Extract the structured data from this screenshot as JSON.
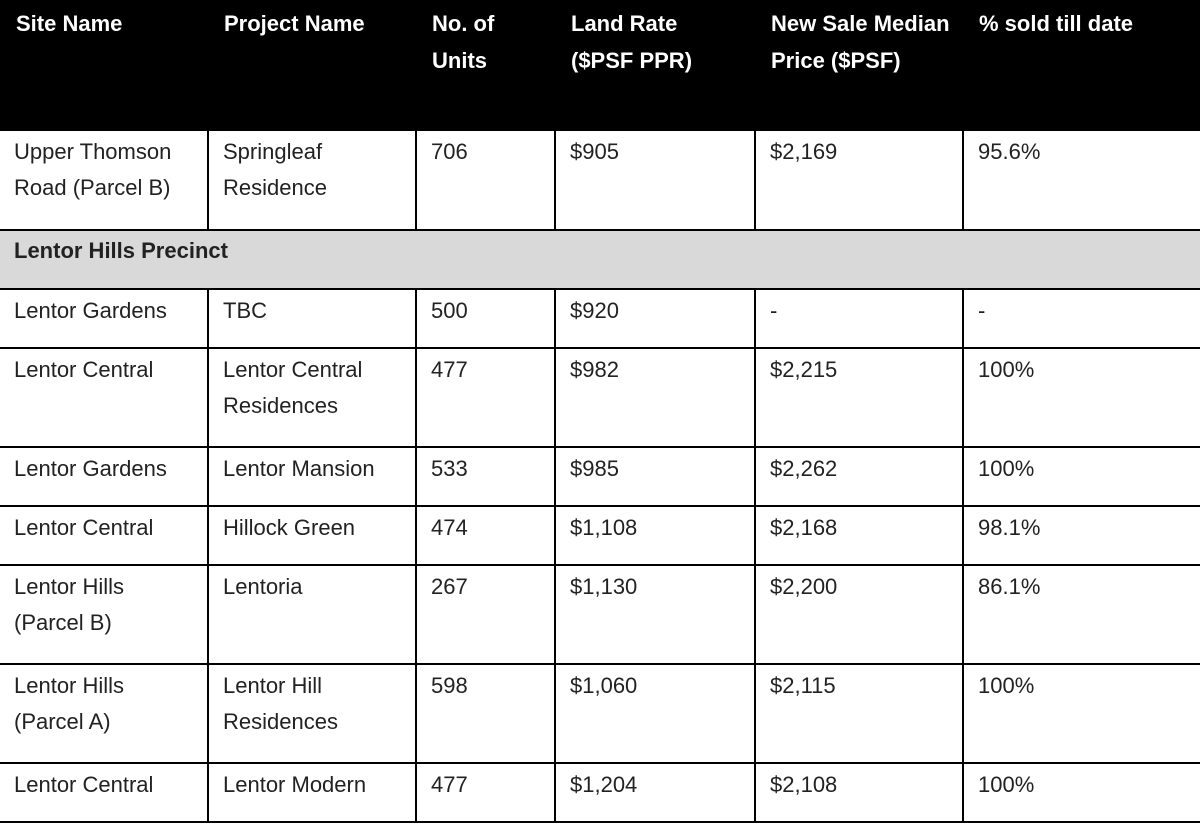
{
  "table": {
    "headers": [
      "Site Name",
      "Project Name",
      "No. of Units",
      "Land Rate ($PSF PPR)",
      "New Sale Median Price ($PSF)",
      "% sold till date"
    ],
    "rows": [
      {
        "type": "data",
        "height": "tall",
        "cells": [
          "Upper Thomson Road (Parcel B)",
          "Springleaf Residence",
          "706",
          "$905",
          "$2,169",
          "95.6%"
        ]
      },
      {
        "type": "section",
        "label": "Lentor Hills Precinct"
      },
      {
        "type": "data",
        "height": "short",
        "cells": [
          "Lentor Gardens",
          "TBC",
          "500",
          "$920",
          "-",
          "-"
        ]
      },
      {
        "type": "data",
        "height": "tall",
        "cells": [
          "Lentor Central",
          "Lentor Central Residences",
          "477",
          "$982",
          "$2,215",
          "100%"
        ]
      },
      {
        "type": "data",
        "height": "short",
        "cells": [
          "Lentor Gardens",
          "Lentor Mansion",
          "533",
          "$985",
          "$2,262",
          "100%"
        ]
      },
      {
        "type": "data",
        "height": "short",
        "cells": [
          "Lentor Central",
          "Hillock Green",
          "474",
          "$1,108",
          "$2,168",
          "98.1%"
        ]
      },
      {
        "type": "data",
        "height": "tall",
        "cells": [
          "Lentor Hills (Parcel B)",
          "Lentoria",
          "267",
          "$1,130",
          "$2,200",
          "86.1%"
        ]
      },
      {
        "type": "data",
        "height": "tall",
        "cells": [
          "Lentor Hills (Parcel A)",
          "Lentor Hill Residences",
          "598",
          "$1,060",
          "$2,115",
          "100%"
        ]
      },
      {
        "type": "data",
        "height": "short",
        "cells": [
          "Lentor Central",
          "Lentor Modern",
          "477",
          "$1,204",
          "$2,108",
          "100%"
        ]
      }
    ]
  }
}
